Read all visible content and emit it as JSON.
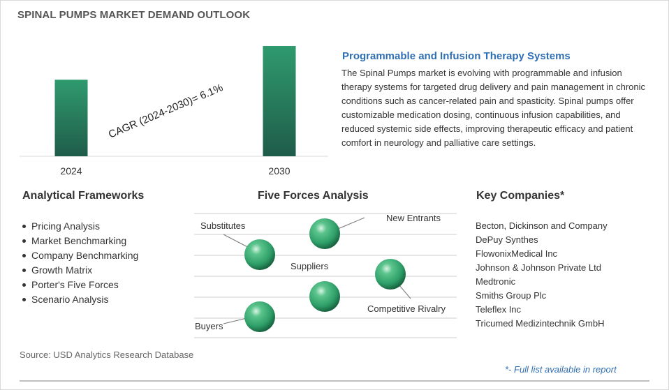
{
  "header": {
    "title": "SPINAL PUMPS MARKET DEMAND OUTLOOK"
  },
  "chart_data": {
    "type": "bar",
    "categories": [
      "2024",
      "2030"
    ],
    "values": [
      1.0,
      1.44
    ],
    "annotation": "CAGR (2024-2030)=   6.1%",
    "colors": {
      "bar_top": "#2f9a6e",
      "bar_bottom": "#1f5c4a"
    }
  },
  "summary": {
    "heading": "Programmable and Infusion Therapy Systems",
    "text": "The Spinal Pumps market is evolving with programmable and infusion therapy systems for targeted drug delivery and pain management in chronic conditions such as cancer-related pain and spasticity. Spinal pumps offer customizable medication dosing, continuous infusion capabilities, and reduced systemic side effects, improving therapeutic efficacy and patient comfort in neurology and palliative care settings."
  },
  "frameworks": {
    "heading": "Analytical Frameworks",
    "items": [
      "Pricing Analysis",
      "Market Benchmarking",
      "Company Benchmarking",
      "Growth Matrix",
      "Porter's Five Forces",
      "Scenario Analysis"
    ]
  },
  "five_forces": {
    "heading": "Five Forces Analysis",
    "labels": {
      "substitutes": "Substitutes",
      "new_entrants": "New Entrants",
      "suppliers": "Suppliers",
      "competitive_rivalry": "Competitive Rivalry",
      "buyers": "Buyers"
    },
    "sphere_color": "#2e9e68"
  },
  "companies": {
    "heading": "Key Companies*",
    "items": [
      "Becton, Dickinson and Company",
      "DePuy Synthes",
      "FlowonixMedical Inc",
      "Johnson & Johnson Private Ltd",
      "Medtronic",
      "Smiths Group Plc",
      "Teleflex Inc",
      "Tricumed Medizintechnik GmbH"
    ]
  },
  "footer": {
    "source": "Source: USD Analytics Research Database",
    "note": "*- Full list available in report"
  }
}
